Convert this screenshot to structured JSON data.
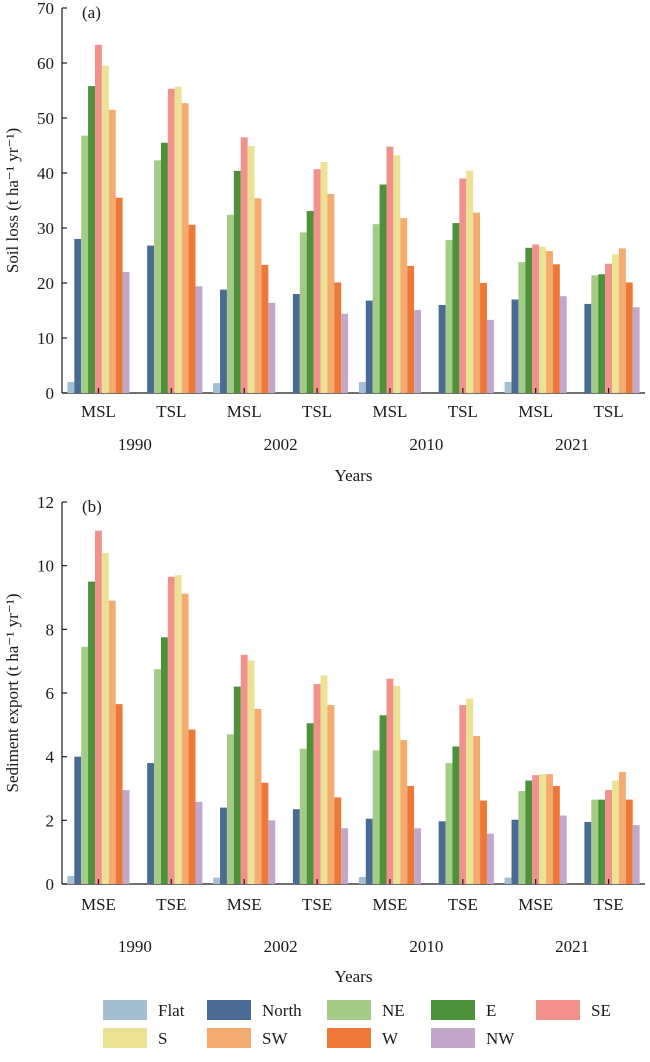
{
  "chart_data": [
    {
      "type": "bar",
      "panel_label": "(a)",
      "xlabel": "Years",
      "ylabel": "Soil loss (t ha⁻¹ yr⁻¹)",
      "ylim": [
        0,
        70
      ],
      "yticks": [
        0,
        10,
        20,
        30,
        40,
        50,
        60,
        70
      ],
      "categories": [
        "MSL",
        "TSL",
        "MSL",
        "TSL",
        "MSL",
        "TSL",
        "MSL",
        "TSL"
      ],
      "groups": [
        "1990",
        "2002",
        "2010",
        "2021"
      ],
      "series": [
        {
          "name": "Flat",
          "values": [
            2.0,
            0,
            1.8,
            0,
            2.0,
            0,
            2.0,
            0
          ]
        },
        {
          "name": "North",
          "values": [
            28.0,
            26.8,
            18.8,
            18.0,
            16.8,
            16.0,
            17.0,
            16.2
          ]
        },
        {
          "name": "NE",
          "values": [
            46.8,
            42.3,
            32.4,
            29.2,
            30.7,
            27.8,
            23.8,
            21.4
          ]
        },
        {
          "name": "E",
          "values": [
            55.8,
            45.5,
            40.4,
            33.1,
            37.9,
            30.9,
            26.4,
            21.6
          ]
        },
        {
          "name": "SE",
          "values": [
            63.3,
            55.3,
            46.5,
            40.7,
            44.8,
            39.0,
            27.0,
            23.5
          ]
        },
        {
          "name": "S",
          "values": [
            59.5,
            55.7,
            44.9,
            42.0,
            43.2,
            40.4,
            26.6,
            25.2
          ]
        },
        {
          "name": "SW",
          "values": [
            51.5,
            52.7,
            35.4,
            36.2,
            31.8,
            32.8,
            25.8,
            26.3
          ]
        },
        {
          "name": "W",
          "values": [
            35.5,
            30.6,
            23.3,
            20.1,
            23.1,
            20.0,
            23.4,
            20.1
          ]
        },
        {
          "name": "NW",
          "values": [
            22.0,
            19.4,
            16.4,
            14.4,
            15.1,
            13.3,
            17.6,
            15.6
          ]
        }
      ]
    },
    {
      "type": "bar",
      "panel_label": "(b)",
      "xlabel": "Years",
      "ylabel": "Sediment export (t ha⁻¹ yr⁻¹)",
      "ylim": [
        0,
        12
      ],
      "yticks": [
        0,
        2,
        4,
        6,
        8,
        10,
        12
      ],
      "categories": [
        "MSE",
        "TSE",
        "MSE",
        "TSE",
        "MSE",
        "TSE",
        "MSE",
        "TSE"
      ],
      "groups": [
        "1990",
        "2002",
        "2010",
        "2021"
      ],
      "series": [
        {
          "name": "Flat",
          "values": [
            0.25,
            0,
            0.2,
            0,
            0.22,
            0,
            0.2,
            0
          ]
        },
        {
          "name": "North",
          "values": [
            4.0,
            3.8,
            2.4,
            2.35,
            2.05,
            1.97,
            2.02,
            1.95
          ]
        },
        {
          "name": "NE",
          "values": [
            7.45,
            6.75,
            4.7,
            4.25,
            4.2,
            3.8,
            2.92,
            2.65
          ]
        },
        {
          "name": "E",
          "values": [
            9.5,
            7.75,
            6.2,
            5.05,
            5.3,
            4.32,
            3.25,
            2.65
          ]
        },
        {
          "name": "SE",
          "values": [
            11.1,
            9.65,
            7.2,
            6.28,
            6.45,
            5.62,
            3.42,
            2.95
          ]
        },
        {
          "name": "S",
          "values": [
            10.4,
            9.7,
            7.02,
            6.55,
            6.22,
            5.82,
            3.45,
            3.25
          ]
        },
        {
          "name": "SW",
          "values": [
            8.9,
            9.12,
            5.5,
            5.62,
            4.52,
            4.65,
            3.45,
            3.52
          ]
        },
        {
          "name": "W",
          "values": [
            5.65,
            4.85,
            3.18,
            2.72,
            3.08,
            2.62,
            3.08,
            2.65
          ]
        },
        {
          "name": "NW",
          "values": [
            2.95,
            2.58,
            2.0,
            1.75,
            1.75,
            1.58,
            2.15,
            1.85
          ]
        }
      ]
    }
  ],
  "legend": {
    "placement": "bottom",
    "items": [
      {
        "name": "Flat",
        "color": "#a3bfd1"
      },
      {
        "name": "North",
        "color": "#4a6b94"
      },
      {
        "name": "NE",
        "color": "#a4cc86"
      },
      {
        "name": "E",
        "color": "#4d913b"
      },
      {
        "name": "SE",
        "color": "#f2908c"
      },
      {
        "name": "S",
        "color": "#ebe293"
      },
      {
        "name": "SW",
        "color": "#f4ab6f"
      },
      {
        "name": "W",
        "color": "#ee7838"
      },
      {
        "name": "NW",
        "color": "#c2a7cb"
      }
    ]
  }
}
